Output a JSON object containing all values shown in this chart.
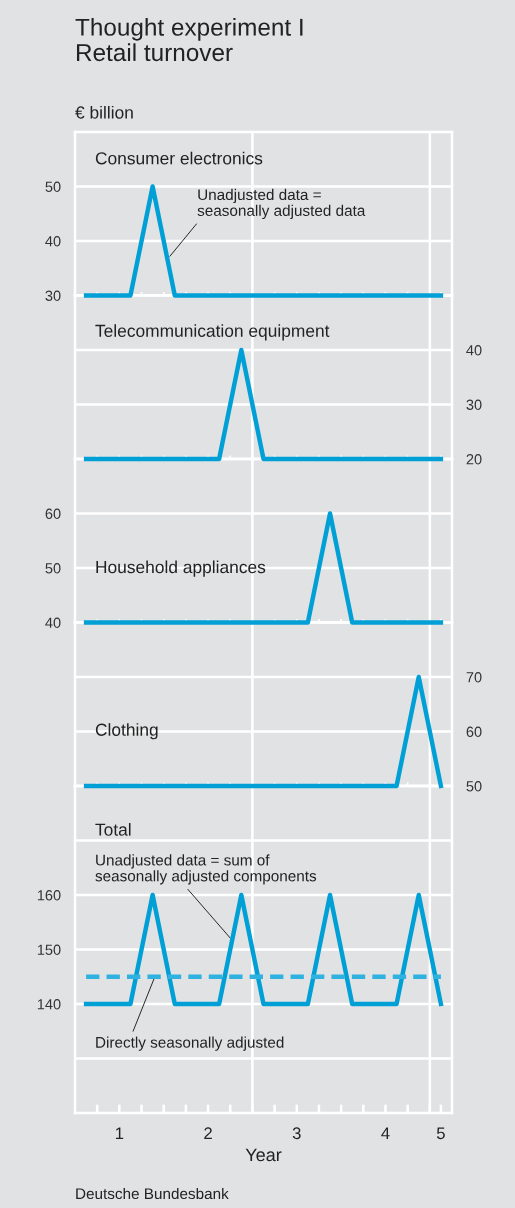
{
  "chart_data": [
    {
      "type": "line",
      "title": "Thought experiment I\nRetail turnover",
      "ylabel": "€ billion",
      "subtitle": "Consumer electronics",
      "x": [
        0.625,
        0.875,
        1.125,
        1.375,
        1.625,
        1.875,
        2.125,
        2.375,
        2.625,
        2.875,
        3.125,
        3.375,
        3.625,
        3.875,
        4.125,
        4.375,
        4.625
      ],
      "xlim": [
        0.5,
        4.75
      ],
      "ylim": [
        30,
        60
      ],
      "yticks": [
        30,
        40,
        50
      ],
      "xticks": [
        {
          "value": 0.75,
          "label": null
        },
        1,
        {
          "value": 1.25,
          "label": null
        },
        {
          "value": 1.5,
          "label": null
        },
        {
          "value": 1.75,
          "label": null
        },
        2,
        {
          "value": 2.25,
          "label": null
        },
        {
          "value": 2.5,
          "label": null
        },
        {
          "value": 2.75,
          "label": null
        },
        3,
        {
          "value": 3.25,
          "label": null
        },
        {
          "value": 3.5,
          "label": null
        },
        {
          "value": 3.75,
          "label": null
        },
        4,
        {
          "value": 4.25,
          "label": null
        },
        {
          "value": 4.5,
          "label": null
        },
        {
          "value": 4.625,
          "label": null
        }
      ],
      "series": [
        {
          "color": "#00a0d6",
          "values": [
            30,
            30,
            30,
            50,
            30,
            30,
            30,
            30,
            30,
            30,
            30,
            30,
            30,
            30,
            30,
            30,
            30
          ]
        }
      ],
      "annotations": [
        {
          "text": "Unadjusted data =\nseasonally adjusted data",
          "x": 1.57,
          "y": 37.2
        }
      ],
      "ref_lines": [
        {
          "axis": "x",
          "value": 2.5,
          "color": "#ffffff"
        },
        {
          "axis": "x",
          "value": 4.5,
          "color": "#ffffff"
        }
      ],
      "grid": "y",
      "tick_labels": "y",
      "marker": "none",
      "line_style": "solid"
    },
    {
      "type": "line",
      "subtitle": "Telecommunication equipment",
      "x": [
        0.625,
        0.875,
        1.125,
        1.375,
        1.625,
        1.875,
        2.125,
        2.375,
        2.625,
        2.875,
        3.125,
        3.375,
        3.625,
        3.875,
        4.125,
        4.375,
        4.625
      ],
      "xlim": [
        0.5,
        4.75
      ],
      "y2lim": [
        20,
        50
      ],
      "y2ticks": [
        20,
        30,
        40
      ],
      "xticks": [
        {
          "value": 0.75,
          "label": null
        },
        1,
        {
          "value": 1.25,
          "label": null
        },
        {
          "value": 1.5,
          "label": null
        },
        {
          "value": 1.75,
          "label": null
        },
        2,
        {
          "value": 2.25,
          "label": null
        },
        {
          "value": 2.5,
          "label": null
        },
        {
          "value": 2.75,
          "label": null
        },
        3,
        {
          "value": 3.25,
          "label": null
        },
        {
          "value": 3.5,
          "label": null
        },
        {
          "value": 3.75,
          "label": null
        },
        4,
        {
          "value": 4.25,
          "label": null
        },
        {
          "value": 4.5,
          "label": null
        },
        {
          "value": 4.625,
          "label": null
        }
      ],
      "series": [
        {
          "color": "#00a0d6",
          "axis": "y2",
          "values": [
            20,
            20,
            20,
            20,
            20,
            20,
            20,
            40,
            20,
            20,
            20,
            20,
            20,
            20,
            20,
            20,
            20
          ]
        }
      ],
      "ref_lines": [
        {
          "axis": "x",
          "value": 2.5,
          "color": "#ffffff"
        },
        {
          "axis": "x",
          "value": 4.5,
          "color": "#ffffff"
        }
      ],
      "grid": "y",
      "tick_labels": "y",
      "marker": "none",
      "line_style": "solid"
    },
    {
      "type": "line",
      "subtitle": "Household appliances",
      "x": [
        0.625,
        0.875,
        1.125,
        1.375,
        1.625,
        1.875,
        2.125,
        2.375,
        2.625,
        2.875,
        3.125,
        3.375,
        3.625,
        3.875,
        4.125,
        4.375,
        4.625
      ],
      "xlim": [
        0.5,
        4.75
      ],
      "ylim": [
        40,
        70
      ],
      "yticks": [
        40,
        50,
        60
      ],
      "xticks": [
        {
          "value": 0.75,
          "label": null
        },
        1,
        {
          "value": 1.25,
          "label": null
        },
        {
          "value": 1.5,
          "label": null
        },
        {
          "value": 1.75,
          "label": null
        },
        2,
        {
          "value": 2.25,
          "label": null
        },
        {
          "value": 2.5,
          "label": null
        },
        {
          "value": 2.75,
          "label": null
        },
        3,
        {
          "value": 3.25,
          "label": null
        },
        {
          "value": 3.5,
          "label": null
        },
        {
          "value": 3.75,
          "label": null
        },
        4,
        {
          "value": 4.25,
          "label": null
        },
        {
          "value": 4.5,
          "label": null
        },
        {
          "value": 4.625,
          "label": null
        }
      ],
      "series": [
        {
          "color": "#00a0d6",
          "values": [
            40,
            40,
            40,
            40,
            40,
            40,
            40,
            40,
            40,
            40,
            40,
            60,
            40,
            40,
            40,
            40,
            40
          ]
        }
      ],
      "ref_lines": [
        {
          "axis": "x",
          "value": 2.5,
          "color": "#ffffff"
        },
        {
          "axis": "x",
          "value": 4.5,
          "color": "#ffffff"
        }
      ],
      "grid": "y",
      "tick_labels": "y",
      "marker": "none",
      "line_style": "solid"
    },
    {
      "type": "line",
      "subtitle": "Clothing",
      "x": [
        0.625,
        0.875,
        1.125,
        1.375,
        1.625,
        1.875,
        2.125,
        2.375,
        2.625,
        2.875,
        3.125,
        3.375,
        3.625,
        3.875,
        4.125,
        4.375,
        4.625
      ],
      "xlim": [
        0.5,
        4.75
      ],
      "y2lim": [
        50,
        80
      ],
      "y2ticks": [
        50,
        60,
        70
      ],
      "xticks": [
        {
          "value": 0.75,
          "label": null
        },
        1,
        {
          "value": 1.25,
          "label": null
        },
        {
          "value": 1.5,
          "label": null
        },
        {
          "value": 1.75,
          "label": null
        },
        2,
        {
          "value": 2.25,
          "label": null
        },
        {
          "value": 2.5,
          "label": null
        },
        {
          "value": 2.75,
          "label": null
        },
        3,
        {
          "value": 3.25,
          "label": null
        },
        {
          "value": 3.5,
          "label": null
        },
        {
          "value": 3.75,
          "label": null
        },
        4,
        {
          "value": 4.25,
          "label": null
        },
        {
          "value": 4.5,
          "label": null
        },
        {
          "value": 4.625,
          "label": null
        }
      ],
      "series": [
        {
          "color": "#00a0d6",
          "axis": "y2",
          "values": [
            50,
            50,
            50,
            50,
            50,
            50,
            50,
            50,
            50,
            50,
            50,
            50,
            50,
            50,
            50,
            70,
            50
          ]
        }
      ],
      "ref_lines": [
        {
          "axis": "x",
          "value": 2.5,
          "color": "#ffffff"
        },
        {
          "axis": "x",
          "value": 4.5,
          "color": "#ffffff"
        }
      ],
      "grid": "y",
      "tick_labels": "y",
      "marker": "none",
      "line_style": "solid"
    },
    {
      "type": "line",
      "subtitle": "Total",
      "xlabel": "Year",
      "x": [
        0.625,
        0.875,
        1.125,
        1.375,
        1.625,
        1.875,
        2.125,
        2.375,
        2.625,
        2.875,
        3.125,
        3.375,
        3.625,
        3.875,
        4.125,
        4.375,
        4.625
      ],
      "xlim": [
        0.5,
        4.75
      ],
      "ylim": [
        120,
        180
      ],
      "yticks": [
        {
          "value": 130,
          "label": null
        },
        140,
        150,
        160,
        {
          "value": 170,
          "label": null
        }
      ],
      "xticks": [
        {
          "value": 0.75,
          "label": null
        },
        1,
        {
          "value": 1.25,
          "label": null
        },
        {
          "value": 1.5,
          "label": null
        },
        {
          "value": 1.75,
          "label": null
        },
        2,
        {
          "value": 2.25,
          "label": null
        },
        {
          "value": 2.5,
          "label": null
        },
        {
          "value": 2.75,
          "label": null
        },
        3,
        {
          "value": 3.25,
          "label": null
        },
        {
          "value": 3.5,
          "label": null
        },
        {
          "value": 3.75,
          "label": null
        },
        4,
        {
          "value": 4.25,
          "label": null
        },
        {
          "value": 4.5,
          "label": null
        },
        {
          "value": 4.625,
          "label": "5"
        }
      ],
      "series": [
        {
          "color": "#00a0d6",
          "values": [
            140,
            140,
            140,
            160,
            140,
            140,
            140,
            160,
            140,
            140,
            140,
            160,
            140,
            140,
            140,
            160,
            140
          ]
        },
        {
          "color": "#2fb2e0",
          "line_style": "dashed",
          "values": [
            145,
            145,
            145,
            145,
            145,
            145,
            145,
            145,
            145,
            145,
            145,
            145,
            145,
            145,
            145,
            145,
            145
          ]
        }
      ],
      "annotations": [
        {
          "text": "Unadjusted data = sum of\nseasonally adjusted components",
          "x": 2.25,
          "y": 152.1
        },
        {
          "text": "Directly seasonally adjusted",
          "x": 1.4,
          "y": 145
        },
        "Deutsche Bundesbank"
      ],
      "ref_lines": [
        {
          "axis": "x",
          "value": 2.5,
          "color": "#ffffff"
        },
        {
          "axis": "x",
          "value": 4.5,
          "color": "#ffffff"
        }
      ],
      "grid": "y",
      "marker": "none",
      "line_style": "solid"
    }
  ]
}
